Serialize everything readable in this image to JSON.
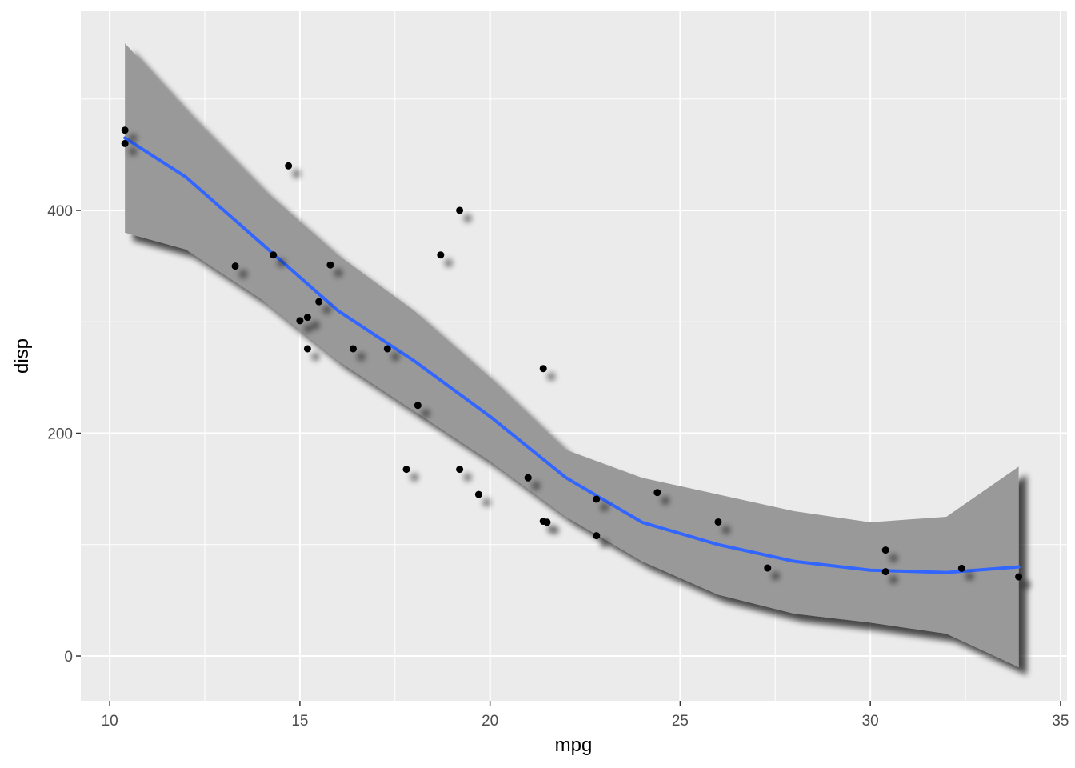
{
  "chart_data": {
    "type": "scatter",
    "x_label": "mpg",
    "y_label": "disp",
    "xlim": [
      9.24,
      35.17
    ],
    "ylim": [
      -40.2,
      578.8
    ],
    "xticks": [
      10,
      15,
      20,
      25,
      30,
      35
    ],
    "yticks": [
      0,
      200,
      400
    ],
    "x_minor_ticks": [
      12.5,
      17.5,
      22.5,
      27.5,
      32.5
    ],
    "y_minor_ticks": [
      100,
      300,
      500
    ],
    "grid": true,
    "series": [
      {
        "color": "#000000",
        "x": [
          21,
          21,
          22.8,
          21.4,
          18.7,
          18.1,
          14.3,
          24.4,
          22.8,
          19.2,
          17.8,
          16.4,
          17.3,
          15.2,
          10.4,
          10.4,
          14.7,
          32.4,
          30.4,
          33.9,
          21.5,
          15.5,
          15.2,
          13.3,
          19.2,
          27.3,
          26,
          30.4,
          15.8,
          19.7,
          15,
          21.4
        ],
        "values": [
          160,
          160,
          108,
          258,
          360,
          225,
          360,
          146.7,
          140.8,
          167.6,
          167.6,
          275.8,
          275.8,
          275.8,
          472,
          460,
          440,
          78.7,
          75.7,
          71.1,
          120.1,
          318,
          304,
          350,
          400,
          79,
          120.3,
          95.1,
          351,
          145,
          301,
          121
        ]
      }
    ],
    "smooth": {
      "line_color": "#3366ff",
      "band_color": "#999999",
      "x": [
        10.4,
        12,
        14,
        16,
        18,
        20,
        22,
        24,
        26,
        28,
        30,
        32,
        33.9
      ],
      "y": [
        465,
        430,
        370,
        310,
        265,
        215,
        160,
        120,
        100,
        85,
        77,
        75,
        80
      ],
      "ymin": [
        380,
        365,
        320,
        265,
        220,
        175,
        125,
        85,
        55,
        38,
        30,
        20,
        -10
      ],
      "ymax": [
        550,
        490,
        420,
        360,
        310,
        250,
        185,
        160,
        145,
        130,
        120,
        125,
        170
      ]
    }
  }
}
